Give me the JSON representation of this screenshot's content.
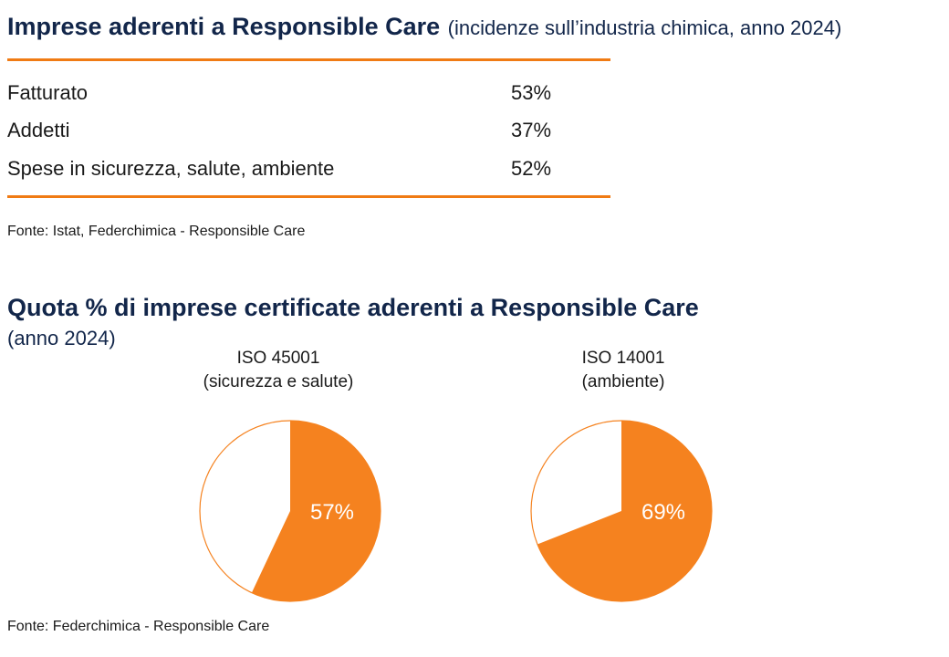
{
  "table_section": {
    "title": "Imprese aderenti a Responsible Care",
    "subtitle": "(incidenze sull’industria chimica, anno 2024)",
    "rows": [
      {
        "label": "Fatturato",
        "value": "53%"
      },
      {
        "label": "Addetti",
        "value": "37%"
      },
      {
        "label": "Spese in sicurezza, salute, ambiente",
        "value": "52%"
      }
    ],
    "source": "Fonte: Istat, Federchimica - Responsible Care"
  },
  "pie_section": {
    "title": "Quota % di imprese certificate aderenti a Responsible Care",
    "subtitle": "(anno 2024)",
    "source": "Fonte: Federchimica - Responsible Care"
  },
  "colors": {
    "accent": "#f5821f",
    "rule": "#f07b14",
    "title": "#12264a"
  },
  "chart_data": [
    {
      "type": "pie",
      "title_line1": "ISO 45001",
      "title_line2": "(sicurezza e salute)",
      "value": 57,
      "label": "57%"
    },
    {
      "type": "pie",
      "title_line1": "ISO 14001",
      "title_line2": "(ambiente)",
      "value": 69,
      "label": "69%"
    }
  ]
}
